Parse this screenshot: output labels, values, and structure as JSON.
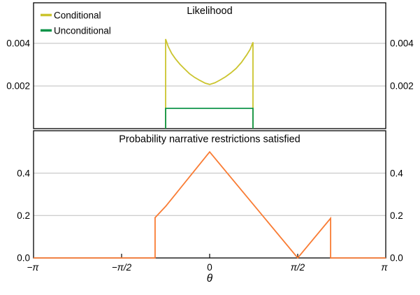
{
  "figure": {
    "background": "#ffffff",
    "frame_color": "#000000",
    "grid_color": "#bdbdbd",
    "text_color": "#000000"
  },
  "chart_data": [
    {
      "panel": "top",
      "type": "line",
      "title": "Likelihood",
      "x_unit": "theta_over_pi",
      "xlim": [
        -1,
        1
      ],
      "ylim": [
        0,
        0.0059
      ],
      "yticks": [
        "0.002",
        "0.004"
      ],
      "ytick_values": [
        0.002,
        0.004
      ],
      "grid": true,
      "legend_position": "top-left",
      "series": [
        {
          "name": "Conditional",
          "color": "#cbc42e",
          "x": [
            -0.25,
            -0.25,
            -0.235,
            -0.215,
            -0.195,
            -0.17,
            -0.145,
            -0.115,
            -0.085,
            -0.055,
            -0.025,
            0,
            0.03,
            0.06,
            0.09,
            0.12,
            0.15,
            0.18,
            0.21,
            0.23,
            0.246,
            0.246
          ],
          "y": [
            0,
            0.0042,
            0.00384,
            0.00352,
            0.00328,
            0.00303,
            0.00282,
            0.00258,
            0.0024,
            0.00226,
            0.00213,
            0.00207,
            0.00215,
            0.00228,
            0.00243,
            0.00261,
            0.00282,
            0.0031,
            0.00345,
            0.00372,
            0.00405,
            0
          ]
        },
        {
          "name": "Unconditional",
          "color": "#0f9449",
          "x": [
            -0.25,
            -0.25,
            0.246,
            0.246
          ],
          "y": [
            0,
            0.00095,
            0.00095,
            0
          ]
        }
      ]
    },
    {
      "panel": "bottom",
      "type": "line",
      "title": "Probability narrative restrictions satisfied",
      "x_unit": "theta_over_pi",
      "xlim": [
        -1,
        1
      ],
      "ylim": [
        0,
        0.6
      ],
      "yticks": [
        "0.0",
        "0.2",
        "0.4"
      ],
      "ytick_values": [
        0,
        0.2,
        0.4
      ],
      "xticks": [
        "−π",
        "−π/2",
        "0",
        "π/2",
        "π"
      ],
      "xtick_values": [
        -1,
        -0.5,
        0,
        0.5,
        1
      ],
      "xlabel": "θ",
      "grid": true,
      "series": [
        {
          "name": "Probability",
          "color": "#f97c34",
          "x": [
            -1,
            -0.31,
            -0.31,
            -0.25,
            0,
            0.5,
            0.687,
            0.687,
            1
          ],
          "y": [
            0,
            0,
            0.19,
            0.243,
            0.5,
            0,
            0.187,
            0,
            0
          ]
        }
      ]
    }
  ]
}
